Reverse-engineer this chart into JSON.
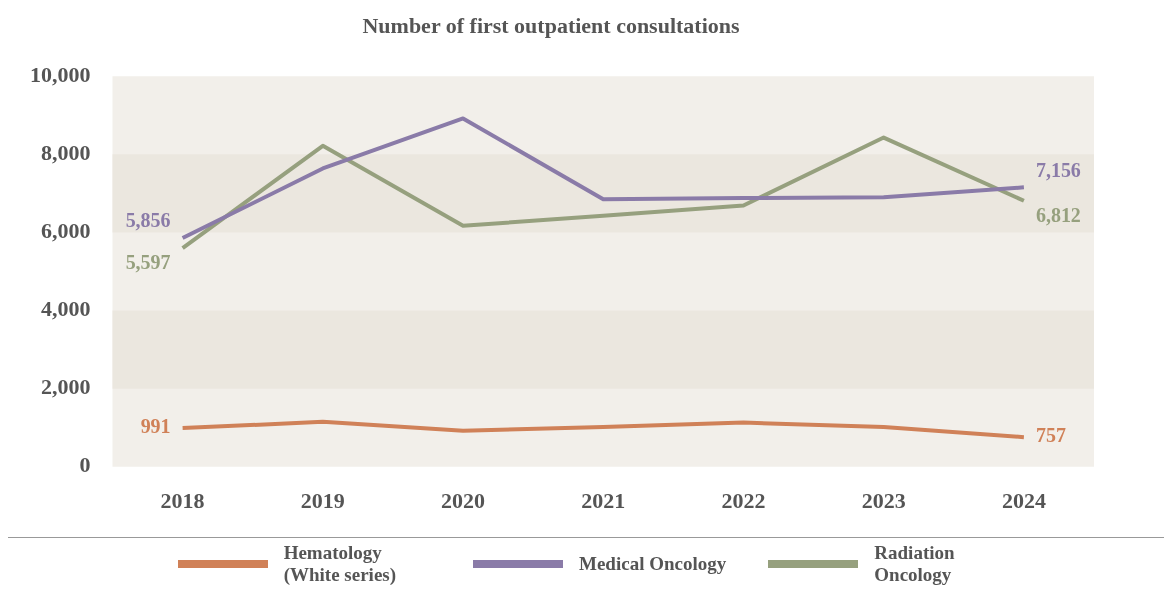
{
  "chart_data": {
    "type": "line",
    "title": "Number of first outpatient consultations",
    "categories": [
      "2018",
      "2019",
      "2020",
      "2021",
      "2022",
      "2023",
      "2024"
    ],
    "series": [
      {
        "name": "Hematology (White series)",
        "color": "#d08158",
        "values": [
          991,
          1150,
          920,
          1020,
          1130,
          1020,
          757
        ],
        "value_labels": [
          "991",
          null,
          null,
          null,
          null,
          null,
          "757"
        ]
      },
      {
        "name": "Medical Oncology",
        "color": "#8a7ba8",
        "values": [
          5856,
          7640,
          8920,
          6850,
          6880,
          6900,
          7156
        ],
        "value_labels": [
          "5,856",
          null,
          null,
          null,
          null,
          null,
          "7,156"
        ]
      },
      {
        "name": "Radiation Oncology",
        "color": "#96a07e",
        "values": [
          5597,
          8220,
          6170,
          6430,
          6690,
          8430,
          6812
        ],
        "value_labels": [
          "5,597",
          null,
          null,
          null,
          null,
          null,
          "6,812"
        ]
      }
    ],
    "ylim": [
      0,
      10000
    ],
    "yticks": [
      {
        "value": 0,
        "label": "0"
      },
      {
        "value": 2000,
        "label": "2,000"
      },
      {
        "value": 4000,
        "label": "4,000"
      },
      {
        "value": 6000,
        "label": "6,000"
      },
      {
        "value": 8000,
        "label": "8,000"
      },
      {
        "value": 10000,
        "label": "10,000"
      }
    ],
    "bands": [
      {
        "axis": "y",
        "from": 2000,
        "to": 4000,
        "color": "#ebe7df"
      },
      {
        "axis": "y",
        "from": 6000,
        "to": 8000,
        "color": "#ebe7df"
      }
    ],
    "grid": false,
    "legend": "bottom",
    "marker": "none",
    "line_style": "solid"
  }
}
